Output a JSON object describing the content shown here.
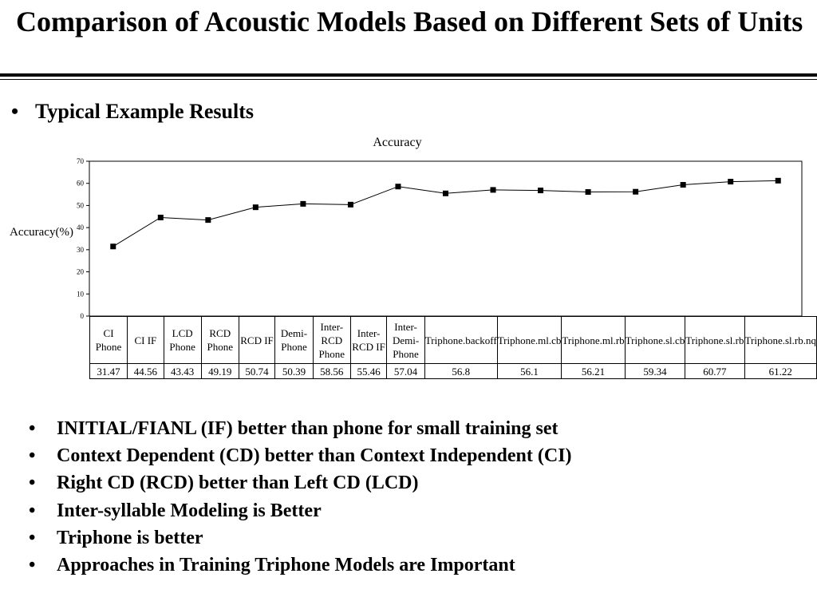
{
  "slide": {
    "title": "Comparison of Acoustic Models Based on Different Sets of Units",
    "lead_bullet": "Typical Example Results",
    "bullets": [
      "INITIAL/FIANL (IF) better than phone for small training set",
      "Context Dependent (CD) better than Context Independent (CI)",
      "Right CD (RCD) better than Left CD (LCD)",
      "Inter-syllable Modeling is Better",
      "Triphone is better",
      "Approaches in Training Triphone Models are Important"
    ]
  },
  "chart_data": {
    "type": "line",
    "title": "Accuracy",
    "ylabel": "Accuracy(%)",
    "xlabel": "",
    "ylim": [
      0,
      70
    ],
    "yticks": [
      0,
      10,
      20,
      30,
      40,
      50,
      60,
      70
    ],
    "grid": false,
    "marker": "square",
    "line_color": "#000000",
    "categories": [
      "CI Phone",
      "CI IF",
      "LCD Phone",
      "RCD Phone",
      "RCD IF",
      "Demi-Phone",
      "Inter-RCD Phone",
      "Inter-RCD IF",
      "Inter-Demi-Phone",
      "Triphone.backoff",
      "Triphone.ml.cb",
      "Triphone.ml.rb",
      "Triphone.sl.cb",
      "Triphone.sl.rb",
      "Triphone.sl.rb.nq"
    ],
    "values": [
      31.47,
      44.56,
      43.43,
      49.19,
      50.74,
      50.39,
      58.56,
      55.46,
      57.04,
      56.8,
      56.1,
      56.21,
      59.34,
      60.77,
      61.22
    ],
    "value_labels": [
      "31.47",
      "44.56",
      "43.43",
      "49.19",
      "50.74",
      "50.39",
      "58.56",
      "55.46",
      "57.04",
      "56.8",
      "56.1",
      "56.21",
      "59.34",
      "60.77",
      "61.22"
    ]
  }
}
